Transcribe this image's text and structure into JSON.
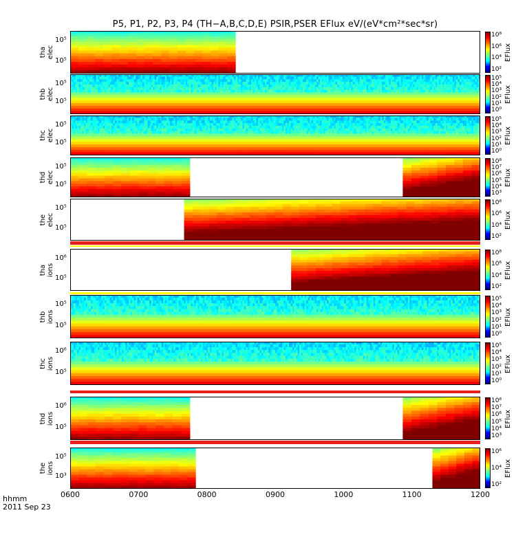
{
  "title": "P5, P1, P2, P3, P4  (TH−A,B,C,D,E)  PSIR,PSER EFlux eV/(eV*cm²*sec*sr)",
  "footer": {
    "label": "hhmm",
    "date": "2011 Sep 23"
  },
  "colorbar_unit": "EFlux",
  "colors": {
    "background": "#ffffff",
    "flag_red": "#e8201c",
    "flag_yellow": "#ffff00"
  },
  "chart_data": {
    "type": "heatmap",
    "x_axis": {
      "label": "hhmm",
      "range": [
        "0600",
        "1200"
      ],
      "ticks": [
        "0600",
        "0700",
        "0800",
        "0900",
        "1000",
        "1100",
        "1200"
      ]
    },
    "panels": [
      {
        "ylabel": [
          "tha",
          "elec"
        ],
        "yticks": [
          "10⁵",
          "10⁵"
        ],
        "cbar_labels": [
          "10⁸",
          "10⁶",
          "10⁴",
          "10²"
        ],
        "coverage": [
          [
            "0600",
            "0825"
          ]
        ]
      },
      {
        "ylabel": [
          "thb",
          "elec"
        ],
        "yticks": [
          "10⁵",
          "10⁵"
        ],
        "cbar_labels": [
          "10⁵",
          "10⁴",
          "10³",
          "10²",
          "10¹",
          "10⁰"
        ],
        "coverage": [
          [
            "0600",
            "1200"
          ]
        ]
      },
      {
        "ylabel": [
          "thc",
          "elec"
        ],
        "yticks": [
          "10⁵",
          "10⁵"
        ],
        "cbar_labels": [
          "10⁵",
          "10⁴",
          "10³",
          "10²",
          "10¹",
          "10⁰"
        ],
        "coverage": [
          [
            "0600",
            "1200"
          ]
        ]
      },
      {
        "ylabel": [
          "thd",
          "elec"
        ],
        "yticks": [
          "10⁵",
          "10⁵"
        ],
        "cbar_labels": [
          "10⁸",
          "10⁷",
          "10⁶",
          "10⁵",
          "10⁴",
          "10³"
        ],
        "coverage": [
          [
            "0600",
            "0745"
          ],
          [
            "1052",
            "1200"
          ]
        ]
      },
      {
        "ylabel": [
          "the",
          "elec"
        ],
        "yticks": [
          "10⁵",
          "10⁵"
        ],
        "cbar_labels": [
          "10⁸",
          "10⁶",
          "10⁴",
          "10²"
        ],
        "coverage": [
          [
            "0740",
            "1200"
          ]
        ]
      },
      {
        "ylabel": [
          "tha",
          "ions"
        ],
        "yticks": [
          "10⁶",
          "10⁵"
        ],
        "cbar_labels": [
          "10⁸",
          "10⁶",
          "10⁴",
          "10²"
        ],
        "coverage": [
          [
            "0914",
            "1200"
          ]
        ]
      },
      {
        "ylabel": [
          "thb",
          "ions"
        ],
        "yticks": [
          "10⁵",
          "10⁵"
        ],
        "cbar_labels": [
          "10⁵",
          "10⁴",
          "10³",
          "10²",
          "10¹",
          "10⁰"
        ],
        "coverage": [
          [
            "0600",
            "1200"
          ]
        ]
      },
      {
        "ylabel": [
          "thc",
          "ions"
        ],
        "yticks": [
          "10⁶",
          "10⁵"
        ],
        "cbar_labels": [
          "10⁵",
          "10⁴",
          "10³",
          "10²",
          "10¹",
          "10⁰"
        ],
        "coverage": [
          [
            "0600",
            "1200"
          ]
        ]
      },
      {
        "ylabel": [
          "thd",
          "ions"
        ],
        "yticks": [
          "10⁶",
          "10⁵"
        ],
        "cbar_labels": [
          "10⁸",
          "10⁷",
          "10⁶",
          "10⁵",
          "10⁴",
          "10³"
        ],
        "coverage": [
          [
            "0600",
            "0745"
          ],
          [
            "1052",
            "1200"
          ]
        ]
      },
      {
        "ylabel": [
          "the",
          "ions"
        ],
        "yticks": [
          "10⁵",
          "10³"
        ],
        "cbar_labels": [
          "10⁶",
          "10⁴",
          "10²"
        ],
        "coverage": [
          [
            "0600",
            "0750"
          ],
          [
            "1118",
            "1200"
          ]
        ]
      }
    ]
  }
}
